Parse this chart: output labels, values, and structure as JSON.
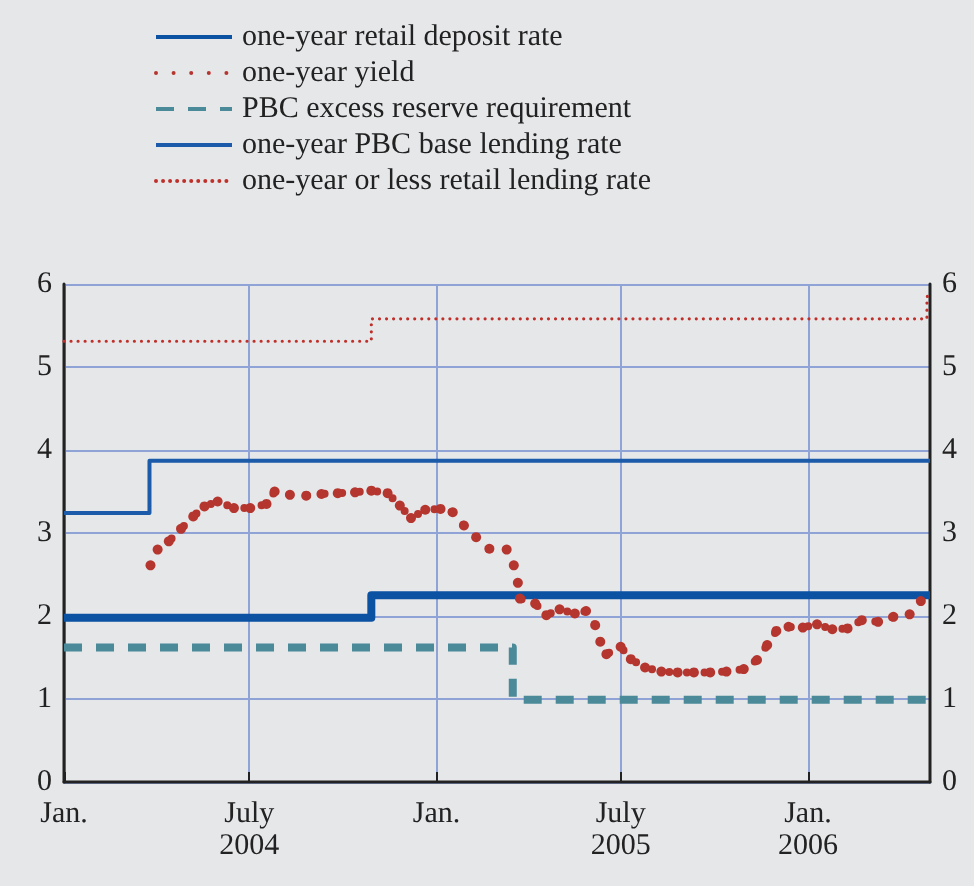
{
  "chart_data": {
    "type": "line",
    "series": [
      {
        "name": "one-year retail deposit rate",
        "type": "step",
        "color": "#0b52a3",
        "line_style": "solid",
        "x": [
          "2004-01-01",
          "2004-10-29",
          "2006-05-01"
        ],
        "values": [
          1.98,
          2.25,
          2.25
        ]
      },
      {
        "name": "one-year yield",
        "type": "line",
        "color": "#b5352f",
        "line_style": "dotted",
        "marker": "circle",
        "x": [
          "2004-03-26",
          "2004-04-02",
          "2004-04-13",
          "2004-04-25",
          "2004-05-07",
          "2004-05-18",
          "2004-05-31",
          "2004-06-16",
          "2004-07-02",
          "2004-07-18",
          "2004-07-26",
          "2004-08-10",
          "2004-08-26",
          "2004-09-10",
          "2004-09-26",
          "2004-10-13",
          "2004-10-29",
          "2004-11-14",
          "2004-11-26",
          "2004-12-07",
          "2004-12-21",
          "2005-01-05",
          "2005-01-17",
          "2005-01-28",
          "2005-02-09",
          "2005-02-22",
          "2005-03-11",
          "2005-03-18",
          "2005-03-22",
          "2005-03-24",
          "2005-04-08",
          "2005-04-19",
          "2005-05-02",
          "2005-05-17",
          "2005-05-28",
          "2005-06-06",
          "2005-06-11",
          "2005-06-17",
          "2005-07-01",
          "2005-07-11",
          "2005-07-25",
          "2005-08-10",
          "2005-08-26",
          "2005-09-11",
          "2005-09-27",
          "2005-10-13",
          "2005-10-30",
          "2005-11-12",
          "2005-11-22",
          "2005-12-01",
          "2005-12-13",
          "2005-12-27",
          "2006-01-10",
          "2006-01-25",
          "2006-02-09",
          "2006-02-23",
          "2006-03-11",
          "2006-03-26",
          "2006-04-11",
          "2006-04-22"
        ],
        "values": [
          2.61,
          2.8,
          2.9,
          3.05,
          3.2,
          3.32,
          3.38,
          3.3,
          3.3,
          3.35,
          3.5,
          3.46,
          3.45,
          3.47,
          3.48,
          3.49,
          3.51,
          3.48,
          3.33,
          3.18,
          3.28,
          3.29,
          3.25,
          3.09,
          2.95,
          2.81,
          2.8,
          2.61,
          2.4,
          2.21,
          2.15,
          2.01,
          2.08,
          2.03,
          2.06,
          1.89,
          1.69,
          1.54,
          1.63,
          1.48,
          1.38,
          1.33,
          1.32,
          1.32,
          1.32,
          1.33,
          1.36,
          1.47,
          1.65,
          1.82,
          1.87,
          1.86,
          1.9,
          1.84,
          1.85,
          1.95,
          1.93,
          1.99,
          2.02,
          2.18
        ]
      },
      {
        "name": "PBC excess reserve requirement",
        "type": "step",
        "color": "#4b8a99",
        "line_style": "dashed",
        "x": [
          "2004-01-01",
          "2005-03-17",
          "2006-05-01"
        ],
        "values": [
          1.62,
          0.99,
          0.99
        ]
      },
      {
        "name": "one-year PBC base lending rate",
        "type": "step",
        "color": "#1b5ba9",
        "line_style": "solid",
        "x": [
          "2004-01-01",
          "2004-03-25",
          "2006-05-01"
        ],
        "values": [
          3.24,
          3.87,
          3.87
        ]
      },
      {
        "name": "one-year or less retail lending rate",
        "type": "step",
        "color": "#c0302a",
        "line_style": "dotted",
        "x": [
          "2004-01-01",
          "2004-10-29",
          "2006-04-28",
          "2006-05-01"
        ],
        "values": [
          5.31,
          5.58,
          5.85,
          5.85
        ]
      }
    ],
    "xlim": [
      "2004-01-01",
      "2006-05-01"
    ],
    "xticks": [
      {
        "value": "2004-01-01",
        "label": "Jan."
      },
      {
        "value": "2004-07-01",
        "label": "July\n2004"
      },
      {
        "value": "2005-01-01",
        "label": "Jan."
      },
      {
        "value": "2005-07-01",
        "label": "July\n2005"
      },
      {
        "value": "2006-01-01",
        "label": "Jan.\n2006"
      }
    ],
    "ylim": [
      0,
      6
    ],
    "yticks": [
      0,
      1,
      2,
      3,
      4,
      5,
      6
    ],
    "y2lim": [
      0,
      6
    ],
    "y2ticks": [
      0,
      1,
      2,
      3,
      4,
      5,
      6
    ],
    "grid": true,
    "legend": "top left",
    "marker": "none"
  }
}
